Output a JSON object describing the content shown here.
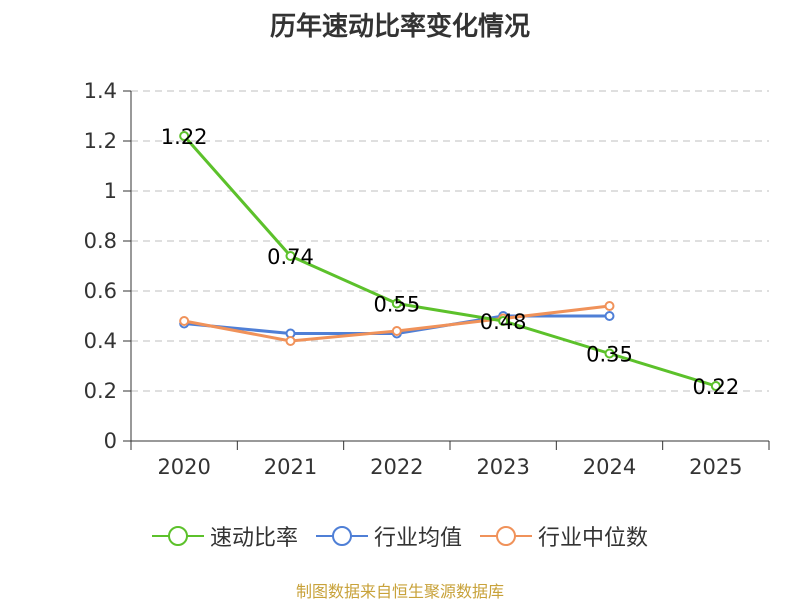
{
  "chart_data": {
    "type": "line",
    "title": "历年速动比率变化情况",
    "categories": [
      "2020",
      "2021",
      "2022",
      "2023",
      "2024",
      "2025"
    ],
    "ylim": [
      0,
      1.4
    ],
    "yticks": [
      "0",
      "0.2",
      "0.4",
      "0.6",
      "0.8",
      "1",
      "1.2",
      "1.4"
    ],
    "grid": true,
    "series": [
      {
        "name": "速动比率",
        "color": "#5cc12b",
        "values": [
          1.22,
          0.74,
          0.55,
          0.48,
          0.35,
          0.22
        ],
        "labels": [
          "1.22",
          "0.74",
          "0.55",
          "0.48",
          "0.35",
          "0.22"
        ]
      },
      {
        "name": "行业均值",
        "color": "#4f7fd6",
        "values": [
          0.47,
          0.43,
          0.43,
          0.5,
          0.5,
          null
        ]
      },
      {
        "name": "行业中位数",
        "color": "#f0925a",
        "values": [
          0.48,
          0.4,
          0.44,
          0.49,
          0.54,
          null
        ]
      }
    ]
  },
  "source": "制图数据来自恒生聚源数据库"
}
